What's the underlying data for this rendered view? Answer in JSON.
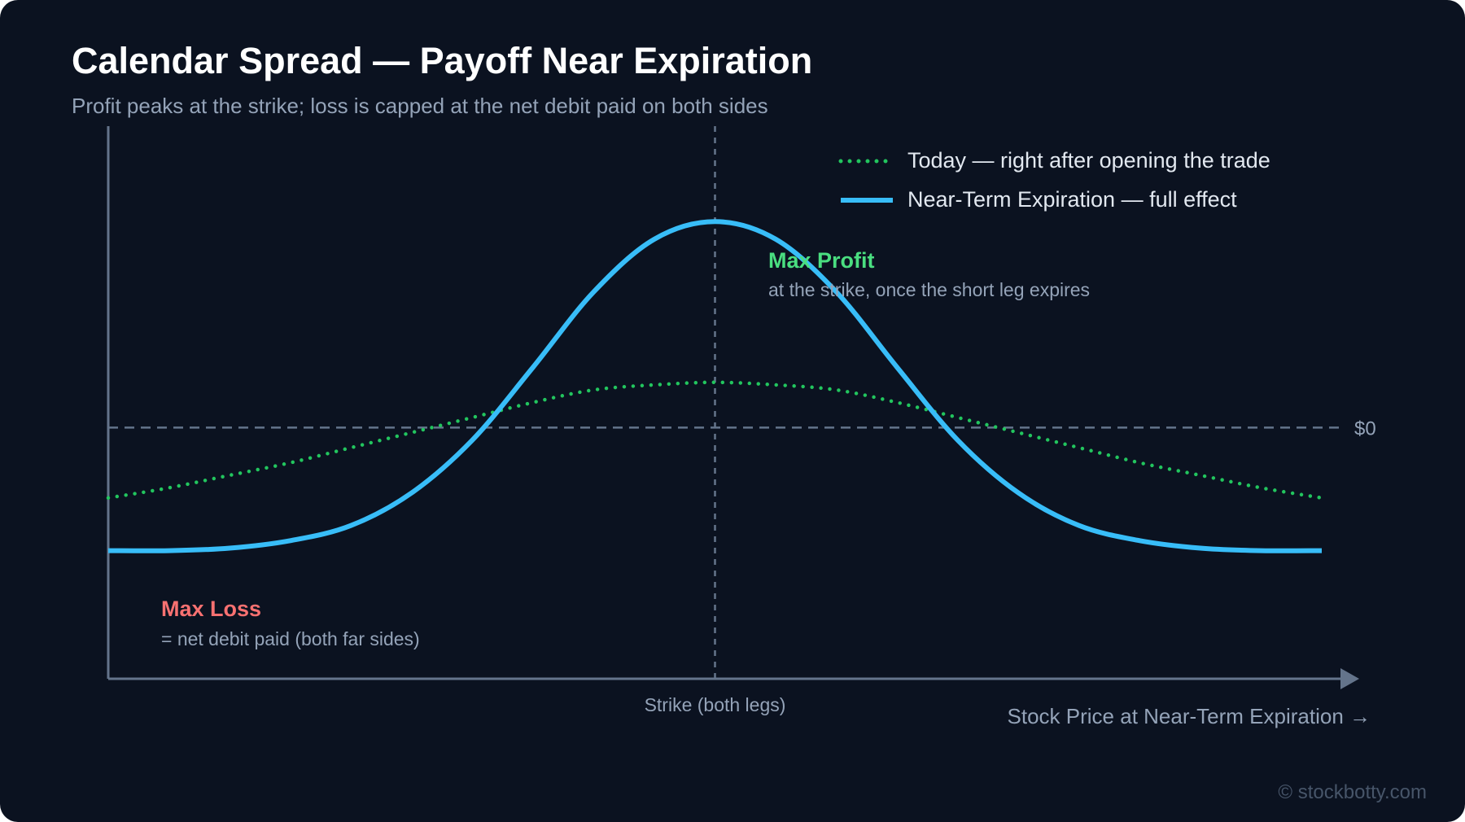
{
  "header": {
    "title": "Calendar Spread — Payoff Near Expiration",
    "subtitle": "Profit peaks at the strike; loss is capped at the net debit paid on both sides"
  },
  "watermark": "© stockbotty.com",
  "colors": {
    "background": "#0b1220",
    "today": "#22c55e",
    "expiration": "#38bdf8",
    "max_profit": "#4ade80",
    "max_loss": "#f87171",
    "axis": "#64748b",
    "muted_text": "#94a3b8"
  },
  "chart_data": {
    "type": "line",
    "xlabel": "Stock Price at Near-Term Expiration →",
    "ylabel": "",
    "xlim": [
      -1,
      1
    ],
    "ylim": [
      -1,
      1.2
    ],
    "zero_label": "$0",
    "strike": {
      "x": 0,
      "label": "Strike (both legs)"
    },
    "legend_position": "top-right",
    "series": [
      {
        "name": "Today — right after opening the trade",
        "style": "dotted",
        "color": "#22c55e",
        "x": [
          -1,
          -0.9,
          -0.8,
          -0.7,
          -0.6,
          -0.5,
          -0.4,
          -0.3,
          -0.2,
          -0.1,
          0,
          0.1,
          0.2,
          0.3,
          0.4,
          0.5,
          0.6,
          0.7,
          0.8,
          0.9,
          1
        ],
        "y": [
          -0.28,
          -0.24,
          -0.19,
          -0.14,
          -0.08,
          -0.02,
          0.04,
          0.1,
          0.15,
          0.17,
          0.18,
          0.17,
          0.15,
          0.1,
          0.04,
          -0.02,
          -0.08,
          -0.14,
          -0.19,
          -0.24,
          -0.28
        ]
      },
      {
        "name": "Near-Term Expiration — full effect",
        "style": "solid",
        "color": "#38bdf8",
        "x": [
          -1,
          -0.9,
          -0.8,
          -0.7,
          -0.6,
          -0.5,
          -0.4,
          -0.3,
          -0.2,
          -0.1,
          0,
          0.1,
          0.2,
          0.3,
          0.4,
          0.5,
          0.6,
          0.7,
          0.8,
          0.9,
          1
        ],
        "y": [
          -0.49,
          -0.49,
          -0.48,
          -0.45,
          -0.39,
          -0.26,
          -0.05,
          0.24,
          0.54,
          0.75,
          0.82,
          0.75,
          0.54,
          0.24,
          -0.05,
          -0.26,
          -0.39,
          -0.45,
          -0.48,
          -0.49,
          -0.49
        ]
      }
    ],
    "annotations": [
      {
        "id": "max_profit",
        "title": "Max Profit",
        "note": "at the strike, once the short leg expires"
      },
      {
        "id": "max_loss",
        "title": "Max Loss",
        "note": "= net debit paid (both far sides)"
      }
    ]
  }
}
